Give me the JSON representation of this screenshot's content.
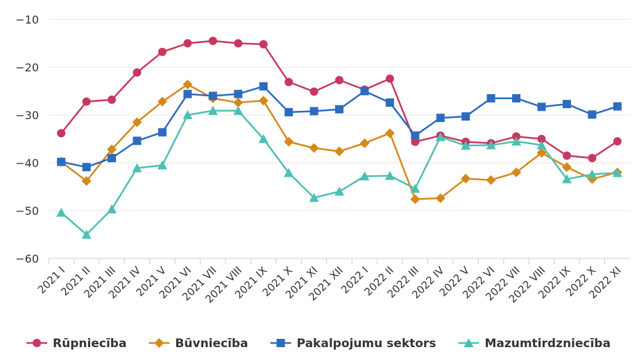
{
  "chart_data": {
    "type": "line",
    "title": "",
    "xlabel": "",
    "ylabel": "",
    "ylim": [
      -60,
      -10
    ],
    "yticks": [
      -10,
      -20,
      -30,
      -40,
      -50,
      -60
    ],
    "grid": true,
    "legend_position": "bottom",
    "categories": [
      "2021 I",
      "2021 II",
      "2021 III",
      "2021 IV",
      "2021 V",
      "2021 VI",
      "2021 VII",
      "2021 VIII",
      "2021 IX",
      "2021 X",
      "2021 XI",
      "2021 XII",
      "2022 I",
      "2022 II",
      "2022 III",
      "2022 IV",
      "2022 V",
      "2022 VI",
      "2022 VII",
      "2022 VIII",
      "2022 IX",
      "2022 X",
      "2022 XI"
    ],
    "series": [
      {
        "name": "Rūpniecība",
        "color": "#c8385e",
        "marker": "circle",
        "values": [
          -33.8,
          -27.2,
          -26.8,
          -21.1,
          -16.8,
          -15.0,
          -14.5,
          -15.0,
          -15.2,
          -23.1,
          -25.1,
          -22.7,
          -24.7,
          -22.4,
          -35.6,
          -34.3,
          -35.6,
          -35.9,
          -34.5,
          -35.0,
          -38.5,
          -39.0,
          -35.5
        ]
      },
      {
        "name": "Būvniecība",
        "color": "#d4891a",
        "marker": "diamond",
        "values": [
          -39.8,
          -43.8,
          -37.2,
          -31.5,
          -27.2,
          -23.6,
          -26.5,
          -27.4,
          -27.0,
          -35.6,
          -36.9,
          -37.6,
          -35.9,
          -33.8,
          -47.6,
          -47.4,
          -43.3,
          -43.6,
          -42.0,
          -37.9,
          -40.9,
          -43.4,
          -42.0
        ]
      },
      {
        "name": "Pakalpojumu sektors",
        "color": "#2d6bbf",
        "marker": "square",
        "values": [
          -39.8,
          -40.9,
          -39.0,
          -35.4,
          -33.6,
          -25.6,
          -26.0,
          -25.6,
          -24.0,
          -29.4,
          -29.2,
          -28.8,
          -25.0,
          -27.4,
          -34.3,
          -30.6,
          -30.3,
          -26.5,
          -26.5,
          -28.3,
          -27.7,
          -29.9,
          -28.2
        ]
      },
      {
        "name": "Mazumtirdzniecība",
        "color": "#4dbfb3",
        "marker": "triangle",
        "values": [
          -50.4,
          -55.0,
          -49.7,
          -41.1,
          -40.5,
          -30.0,
          -29.1,
          -29.1,
          -35.0,
          -42.1,
          -47.3,
          -46.0,
          -42.8,
          -42.7,
          -45.4,
          -34.6,
          -36.4,
          -36.3,
          -35.5,
          -36.3,
          -43.4,
          -42.4,
          -42.1
        ]
      }
    ]
  }
}
